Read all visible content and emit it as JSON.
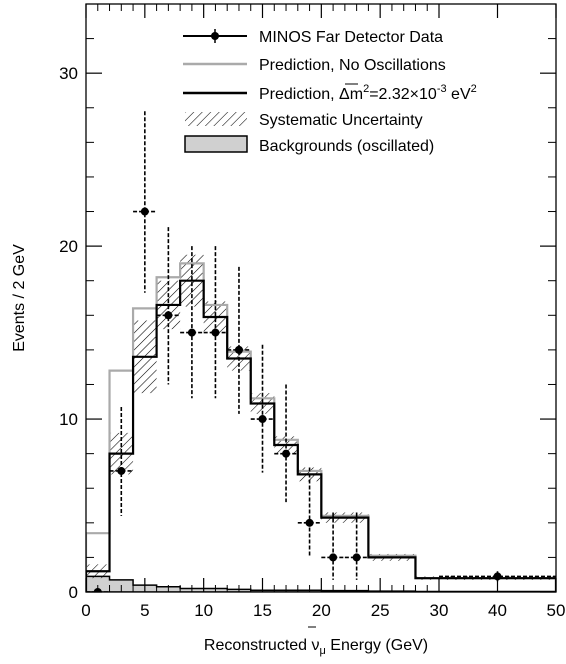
{
  "chart_data": {
    "type": "histogram",
    "title": "",
    "xlabel_parts": [
      "Reconstructed ",
      "ν",
      "μ",
      " Energy (GeV)"
    ],
    "ylabel": "Events / 2 GeV",
    "xlim": [
      0,
      50
    ],
    "ylim": [
      0,
      34
    ],
    "x_major_ticks": [
      0,
      5,
      10,
      15,
      20,
      25,
      30,
      40,
      50
    ],
    "x_tick_labels": [
      "0",
      "5",
      "10",
      "15",
      "20",
      "25",
      "30",
      "40",
      "50"
    ],
    "y_major_ticks": [
      0,
      10,
      20,
      30
    ],
    "y_tick_labels": [
      "0",
      "10",
      "20",
      "30"
    ],
    "x_scale": "piecewise: linear 0-30 GeV, compressed 30-50 GeV",
    "grid": false,
    "legend_placement": "top-right",
    "bin_edges": [
      0,
      2,
      4,
      6,
      8,
      10,
      12,
      14,
      16,
      18,
      20,
      22,
      24,
      26,
      28,
      30,
      50
    ],
    "series": [
      {
        "key": "data",
        "name": "MINOS Far Detector Data",
        "kind": "points",
        "x": [
          1,
          3,
          5,
          7,
          9,
          11,
          13,
          15,
          17,
          19,
          21,
          23,
          40
        ],
        "y": [
          0,
          7,
          22,
          16,
          15,
          15,
          14,
          10,
          8,
          4,
          2,
          2,
          0.9
        ],
        "yerr_low": [
          0,
          2.6,
          4.7,
          4.0,
          3.8,
          3.8,
          3.7,
          3.1,
          2.8,
          1.9,
          1.3,
          1.3,
          0.3
        ],
        "yerr_high": [
          0,
          3.7,
          5.8,
          5.1,
          5.0,
          5.0,
          4.8,
          4.3,
          4.0,
          3.2,
          2.6,
          2.6,
          0.3
        ],
        "xerr": [
          1,
          1,
          1,
          1,
          1,
          1,
          1,
          1,
          1,
          1,
          1,
          1,
          10
        ],
        "color": "#000000"
      },
      {
        "key": "no_osc",
        "name": "Prediction, No Oscillations",
        "kind": "step",
        "values": [
          3.4,
          12.8,
          16.4,
          18.2,
          19.0,
          16.6,
          13.9,
          11.2,
          8.8,
          7.0,
          4.4,
          4.4,
          2.1,
          2.1,
          0.8,
          0.8
        ],
        "color": "#aaaaaa"
      },
      {
        "key": "osc",
        "name_parts": [
          "Prediction, Δ",
          "m",
          "2",
          "=2.32×10",
          "-3",
          " eV",
          "2"
        ],
        "kind": "step",
        "values": [
          1.2,
          8.0,
          13.6,
          16.6,
          18.0,
          15.9,
          13.5,
          10.9,
          8.5,
          6.8,
          4.3,
          4.3,
          2.0,
          2.0,
          0.8,
          0.8
        ],
        "color": "#000000"
      },
      {
        "key": "syst",
        "name": "Systematic Uncertainty",
        "kind": "band",
        "values": [
          1.2,
          8.0,
          13.6,
          16.6,
          18.0,
          15.9,
          13.5,
          10.9,
          8.5,
          6.8,
          4.3,
          4.3,
          2.0,
          2.0,
          0.8,
          0.8
        ],
        "half_width": [
          0.4,
          1.2,
          2.1,
          1.4,
          1.5,
          0.9,
          0.7,
          0.6,
          0.5,
          0.4,
          0.3,
          0.3,
          0.2,
          0.2,
          0.1,
          0.1
        ]
      },
      {
        "key": "bkg",
        "name": "Backgrounds (oscillated)",
        "kind": "filled-step",
        "values": [
          0.9,
          0.7,
          0.4,
          0.3,
          0.2,
          0.2,
          0.15,
          0.1,
          0.1,
          0.1,
          0.08,
          0.08,
          0.05,
          0.05,
          0.03,
          0.03
        ],
        "color": "#d0d0d0"
      }
    ]
  }
}
